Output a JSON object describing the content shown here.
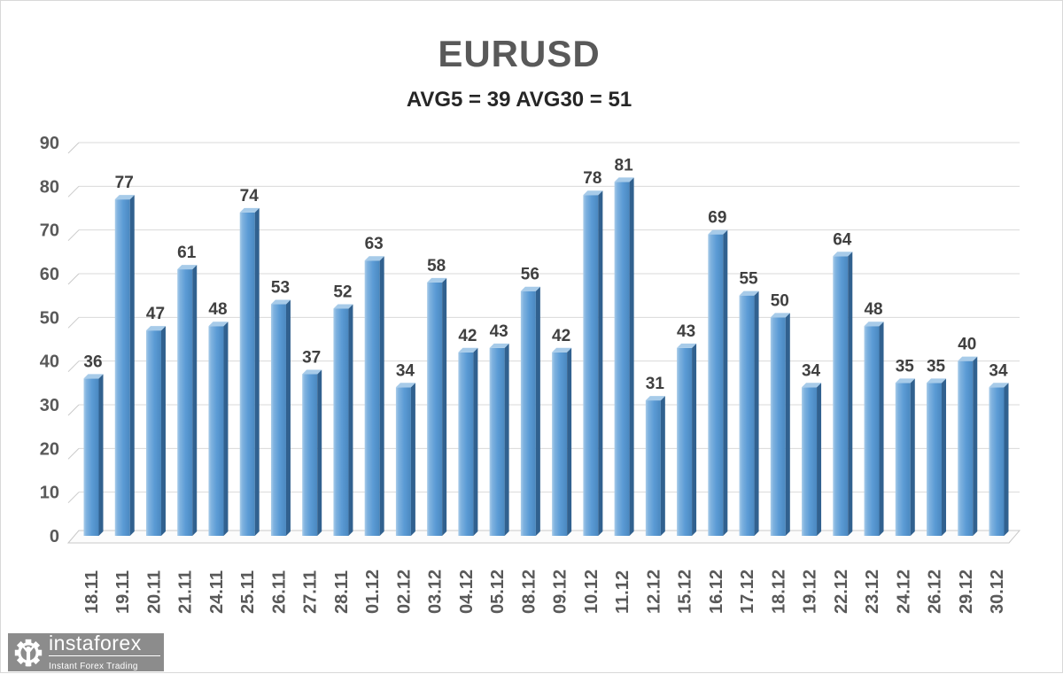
{
  "title": "EURUSD",
  "subtitle": "AVG5 = 39 AVG30 = 51",
  "logo": {
    "brand": "instaforex",
    "tagline": "Instant Forex Trading",
    "icon": "gear-person-icon",
    "bg_color": "#8c8c8c"
  },
  "colors": {
    "bar_main": "#5b9bd5",
    "bar_side": "#31618f",
    "bar_top": "#a7cbe9",
    "grid": "#d9d9d9",
    "axis_text": "#595959",
    "value_text": "#404040",
    "title_text": "#595959",
    "subtitle_text": "#262626"
  },
  "chart_data": {
    "type": "bar",
    "title": "EURUSD",
    "subtitle": "AVG5 = 39 AVG30 = 51",
    "xlabel": "",
    "ylabel": "",
    "ylim": [
      0,
      90
    ],
    "yticks": [
      0,
      10,
      20,
      30,
      40,
      50,
      60,
      70,
      80,
      90
    ],
    "grid": true,
    "style": "3d-bar",
    "value_labels": true,
    "legend": "none",
    "categories": [
      "18.11",
      "19.11",
      "20.11",
      "21.11",
      "24.11",
      "25.11",
      "26.11",
      "27.11",
      "28.11",
      "01.12",
      "02.12",
      "03.12",
      "04.12",
      "05.12",
      "08.12",
      "09.12",
      "10.12",
      "11.12",
      "12.12",
      "15.12",
      "16.12",
      "17.12",
      "18.12",
      "19.12",
      "22.12",
      "23.12",
      "24.12",
      "26.12",
      "29.12",
      "30.12"
    ],
    "values": [
      36,
      77,
      47,
      61,
      48,
      74,
      53,
      37,
      52,
      63,
      34,
      58,
      42,
      43,
      56,
      42,
      78,
      81,
      31,
      43,
      69,
      55,
      50,
      34,
      64,
      48,
      35,
      35,
      40,
      34
    ]
  }
}
